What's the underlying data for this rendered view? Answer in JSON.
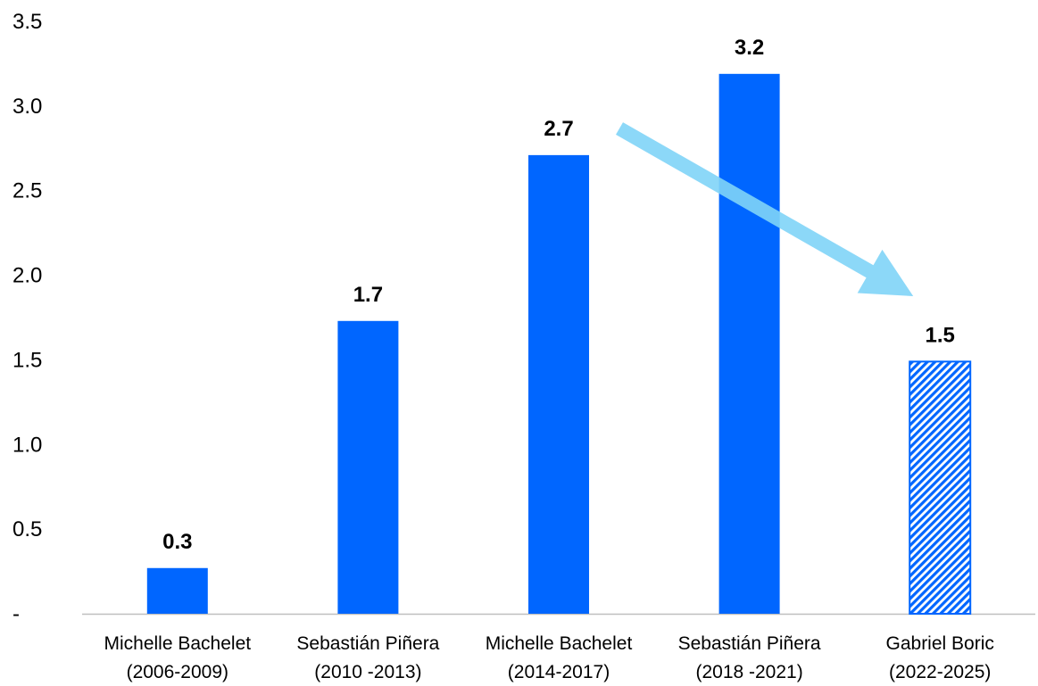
{
  "chart_data": {
    "type": "bar",
    "categories": [
      [
        "Michelle Bachelet",
        "(2006-2009)"
      ],
      [
        "Sebastián Piñera",
        "(2010 -2013)"
      ],
      [
        "Michelle Bachelet",
        "(2014-2017)"
      ],
      [
        "Sebastián Piñera",
        "(2018 -2021)"
      ],
      [
        "Gabriel Boric",
        "(2022-2025)"
      ]
    ],
    "values": [
      0.27,
      1.73,
      2.71,
      3.19,
      1.49
    ],
    "data_labels": [
      "0.3",
      "1.7",
      "2.7",
      "3.2",
      "1.5"
    ],
    "projected": [
      false,
      false,
      false,
      false,
      true
    ],
    "ylim": [
      0,
      3.5
    ],
    "yticks": [
      {
        "value": 0,
        "label": "-"
      },
      {
        "value": 0.5,
        "label": "0.5"
      },
      {
        "value": 1.0,
        "label": "1.0"
      },
      {
        "value": 1.5,
        "label": "1.5"
      },
      {
        "value": 2.0,
        "label": "2.0"
      },
      {
        "value": 2.5,
        "label": "2.5"
      },
      {
        "value": 3.0,
        "label": "3.0"
      },
      {
        "value": 3.5,
        "label": "3.5"
      }
    ],
    "grid": false,
    "title": "",
    "xlabel": "",
    "ylabel": "",
    "annotations": [
      {
        "type": "arrow",
        "description": "downward trend arrow",
        "from_category": 2,
        "to_category": 4
      }
    ]
  },
  "colors": {
    "bar": "#0066ff",
    "hatch": "#0066ff",
    "arrow": "#7fd4f7",
    "axis": "#bfbfbf"
  }
}
